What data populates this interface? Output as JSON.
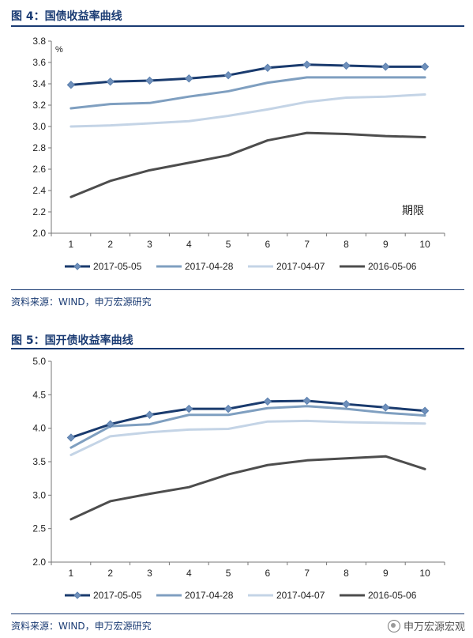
{
  "figure4": {
    "title": "图 4：国债收益率曲线",
    "source": "资料来源：WIND，申万宏源研究"
  },
  "figure5": {
    "title": "图 5：国开债收益率曲线",
    "source": "资料来源：WIND，申万宏源研究"
  },
  "watermark": {
    "text": "申万宏源宏观",
    "icon": "wechat-icon"
  },
  "chart_data": [
    {
      "type": "line",
      "title": "",
      "ylabel": "%",
      "xlabel": "期限",
      "ylim": [
        2.0,
        3.8
      ],
      "yticks": [
        "2.0",
        "2.2",
        "2.4",
        "2.6",
        "2.8",
        "3.0",
        "3.2",
        "3.4",
        "3.6",
        "3.8"
      ],
      "x": [
        "1",
        "2",
        "3",
        "4",
        "5",
        "6",
        "7",
        "8",
        "9",
        "10"
      ],
      "grid": false,
      "legend": "bottom",
      "series": [
        {
          "name": "2017-05-05",
          "color": "#1a3b6e",
          "marker": "diamond",
          "values": [
            3.39,
            3.42,
            3.43,
            3.45,
            3.48,
            3.55,
            3.58,
            3.57,
            3.56,
            3.56
          ]
        },
        {
          "name": "2017-04-28",
          "color": "#7f9fc0",
          "marker": "none",
          "values": [
            3.17,
            3.21,
            3.22,
            3.28,
            3.33,
            3.41,
            3.46,
            3.46,
            3.46,
            3.46
          ]
        },
        {
          "name": "2017-04-07",
          "color": "#c4d4e6",
          "marker": "none",
          "values": [
            3.0,
            3.01,
            3.03,
            3.05,
            3.1,
            3.16,
            3.23,
            3.27,
            3.28,
            3.3
          ]
        },
        {
          "name": "2016-05-06",
          "color": "#4d4d4d",
          "marker": "none",
          "values": [
            2.34,
            2.49,
            2.59,
            2.66,
            2.73,
            2.87,
            2.94,
            2.93,
            2.91,
            2.9
          ]
        }
      ]
    },
    {
      "type": "line",
      "title": "",
      "ylabel": "",
      "xlabel": "",
      "ylim": [
        2.0,
        5.0
      ],
      "yticks": [
        "2.0",
        "2.5",
        "3.0",
        "3.5",
        "4.0",
        "4.5",
        "5.0"
      ],
      "x": [
        "1",
        "2",
        "3",
        "4",
        "5",
        "6",
        "7",
        "8",
        "9",
        "10"
      ],
      "grid": false,
      "legend": "bottom",
      "series": [
        {
          "name": "2017-05-05",
          "color": "#1a3b6e",
          "marker": "diamond",
          "values": [
            3.86,
            4.06,
            4.2,
            4.29,
            4.29,
            4.4,
            4.41,
            4.36,
            4.31,
            4.26
          ]
        },
        {
          "name": "2017-04-28",
          "color": "#7f9fc0",
          "marker": "none",
          "values": [
            3.71,
            4.03,
            4.06,
            4.2,
            4.2,
            4.3,
            4.33,
            4.29,
            4.23,
            4.19
          ]
        },
        {
          "name": "2017-04-07",
          "color": "#c4d4e6",
          "marker": "none",
          "values": [
            3.6,
            3.88,
            3.94,
            3.98,
            3.99,
            4.1,
            4.11,
            4.09,
            4.08,
            4.07
          ]
        },
        {
          "name": "2016-05-06",
          "color": "#4d4d4d",
          "marker": "none",
          "values": [
            2.64,
            2.91,
            3.02,
            3.12,
            3.31,
            3.45,
            3.52,
            3.55,
            3.58,
            3.39
          ]
        }
      ]
    }
  ]
}
